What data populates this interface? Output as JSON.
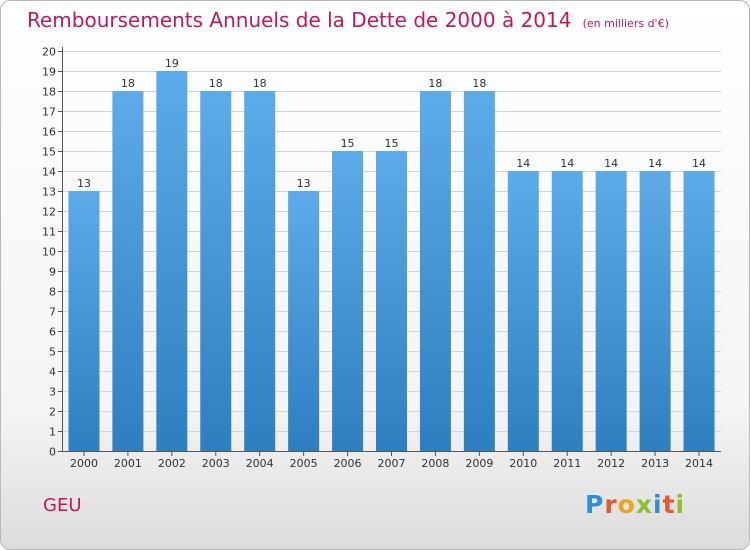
{
  "title": "Remboursements Annuels de la Dette de 2000 à 2014",
  "unit_note": "(en milliers d'€)",
  "commune": "GEU",
  "logo": {
    "letters": [
      "P",
      "r",
      "o",
      "x",
      "i",
      "t",
      "i"
    ],
    "colors": [
      "#2e8fd6",
      "#e8552e",
      "#f0a21b",
      "#8fbf2a",
      "#2e8fd6",
      "#e8552e",
      "#8fbf2a"
    ]
  },
  "colors": {
    "bar_top": "#5dabe8",
    "bar_bottom": "#2d7fc0",
    "title": "#c0185f",
    "grid": "#d4d4d4"
  },
  "chart_data": {
    "type": "bar",
    "categories": [
      "2000",
      "2001",
      "2002",
      "2003",
      "2004",
      "2005",
      "2006",
      "2007",
      "2008",
      "2009",
      "2010",
      "2011",
      "2012",
      "2013",
      "2014"
    ],
    "values": [
      13,
      18,
      19,
      18,
      18,
      13,
      15,
      15,
      18,
      18,
      14,
      14,
      14,
      14,
      14
    ],
    "value_labels": [
      "13",
      "18",
      "19",
      "18",
      "18",
      "13",
      "15",
      "15",
      "18",
      "18",
      "14",
      "14",
      "14",
      "14",
      "14"
    ],
    "ylim": [
      0,
      20
    ],
    "yticks": [
      "0",
      "1",
      "2",
      "3",
      "4",
      "5",
      "6",
      "7",
      "8",
      "9",
      "10",
      "11",
      "12",
      "13",
      "14",
      "15",
      "16",
      "17",
      "18",
      "19",
      "20"
    ],
    "grid": true
  }
}
